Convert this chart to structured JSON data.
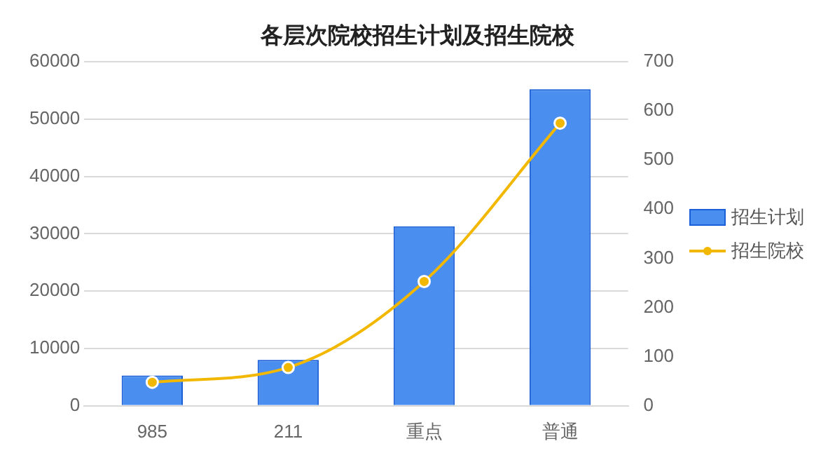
{
  "chart_data": {
    "type": "bar",
    "title": "各层次院校招生计划及招生院校",
    "categories": [
      "985",
      "211",
      "重点",
      "普通"
    ],
    "series": [
      {
        "name": "招生计划",
        "color": "#4a8ff0",
        "values": [
          5300,
          8000,
          31300,
          55200
        ]
      },
      {
        "name": "招生院校",
        "type": "line",
        "axis": "y2",
        "color": "#f2b800",
        "values": [
          48,
          78,
          253,
          575
        ],
        "marker": "circle"
      }
    ],
    "ylim": [
      0,
      60000
    ],
    "yticks": [
      0,
      10000,
      20000,
      30000,
      40000,
      50000,
      60000
    ],
    "y2lim": [
      0,
      700
    ],
    "y2ticks": [
      0,
      100,
      200,
      300,
      400,
      500,
      600,
      700
    ],
    "grid": "y",
    "legend": "right"
  }
}
